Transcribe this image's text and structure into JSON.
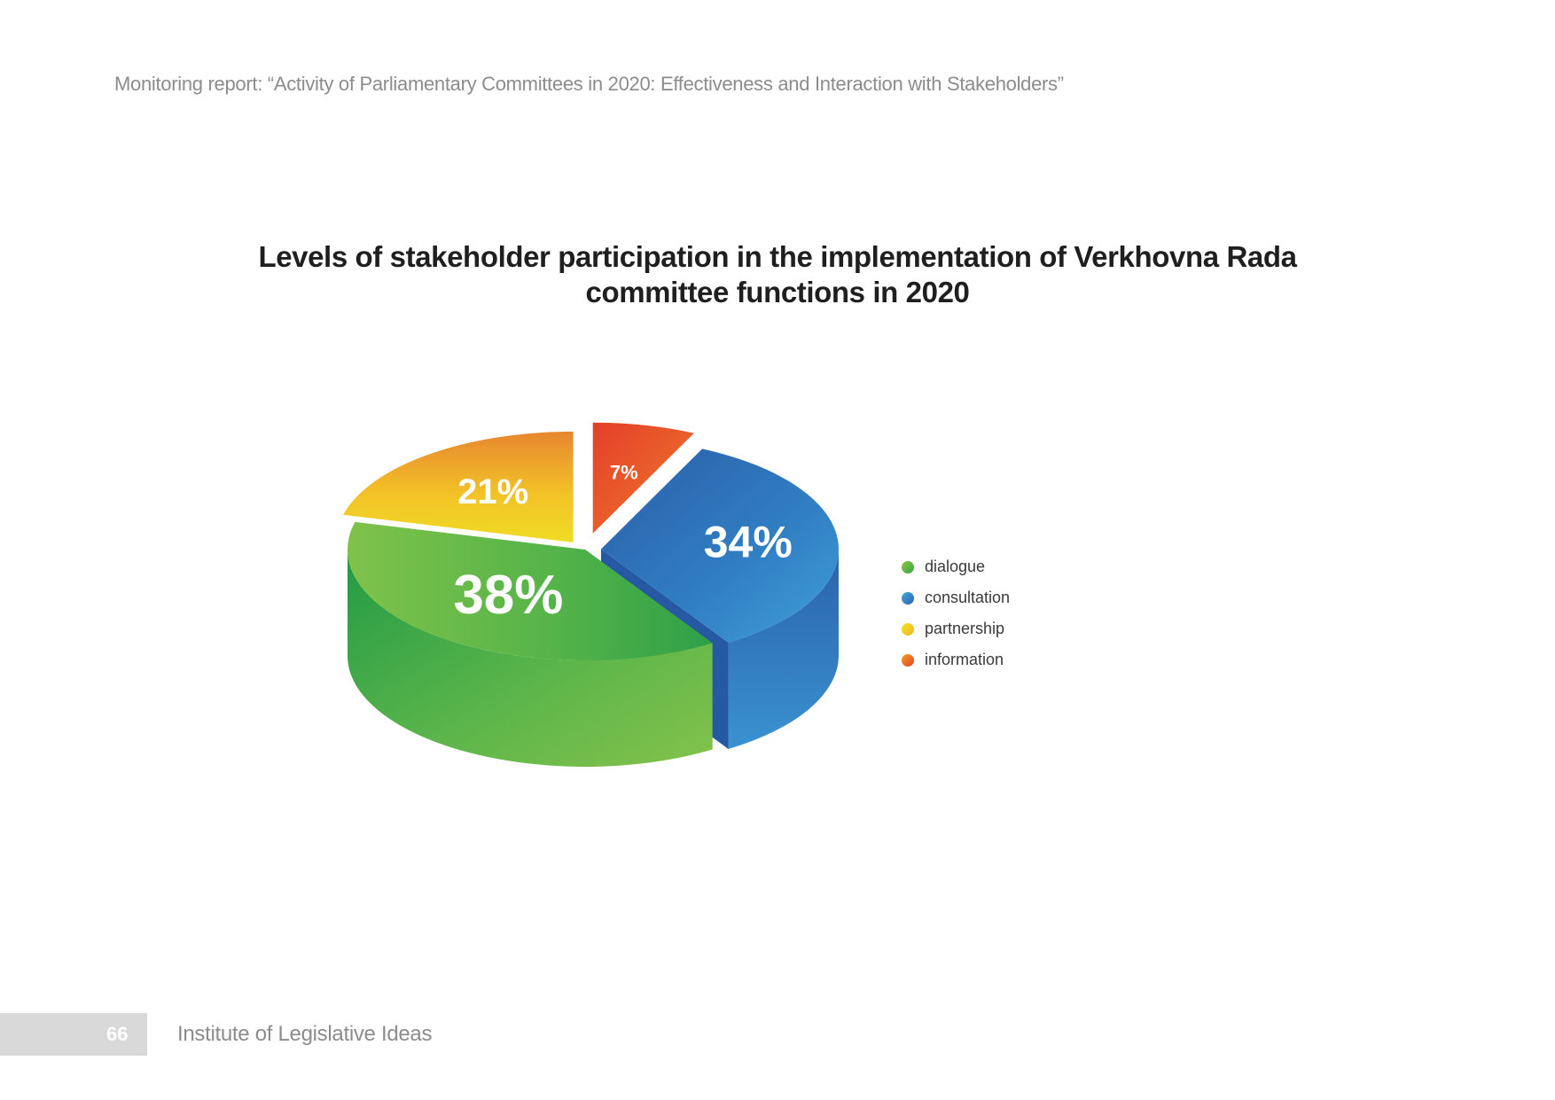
{
  "header": {
    "running_title": "Monitoring report: “Activity of Parliamentary Committees in 2020: Effectiveness and Interaction with Stakeholders”"
  },
  "chart_data": {
    "type": "pie",
    "title_lines": [
      "Levels of stakeholder participation in the implementation of Verkhovna Rada",
      "committee functions in 2020"
    ],
    "labels": [
      "dialogue",
      "consultation",
      "partnership",
      "information"
    ],
    "values": [
      38,
      34,
      21,
      7
    ],
    "value_labels": [
      "38%",
      "34%",
      "21%",
      "7%"
    ],
    "colors": [
      "#5db548",
      "#3480c4",
      "#efc321",
      "#e8552b"
    ],
    "legend_position": "right",
    "style": "3d-exploded"
  },
  "footer": {
    "page_number": "66",
    "organization": "Institute of Legislative Ideas"
  }
}
